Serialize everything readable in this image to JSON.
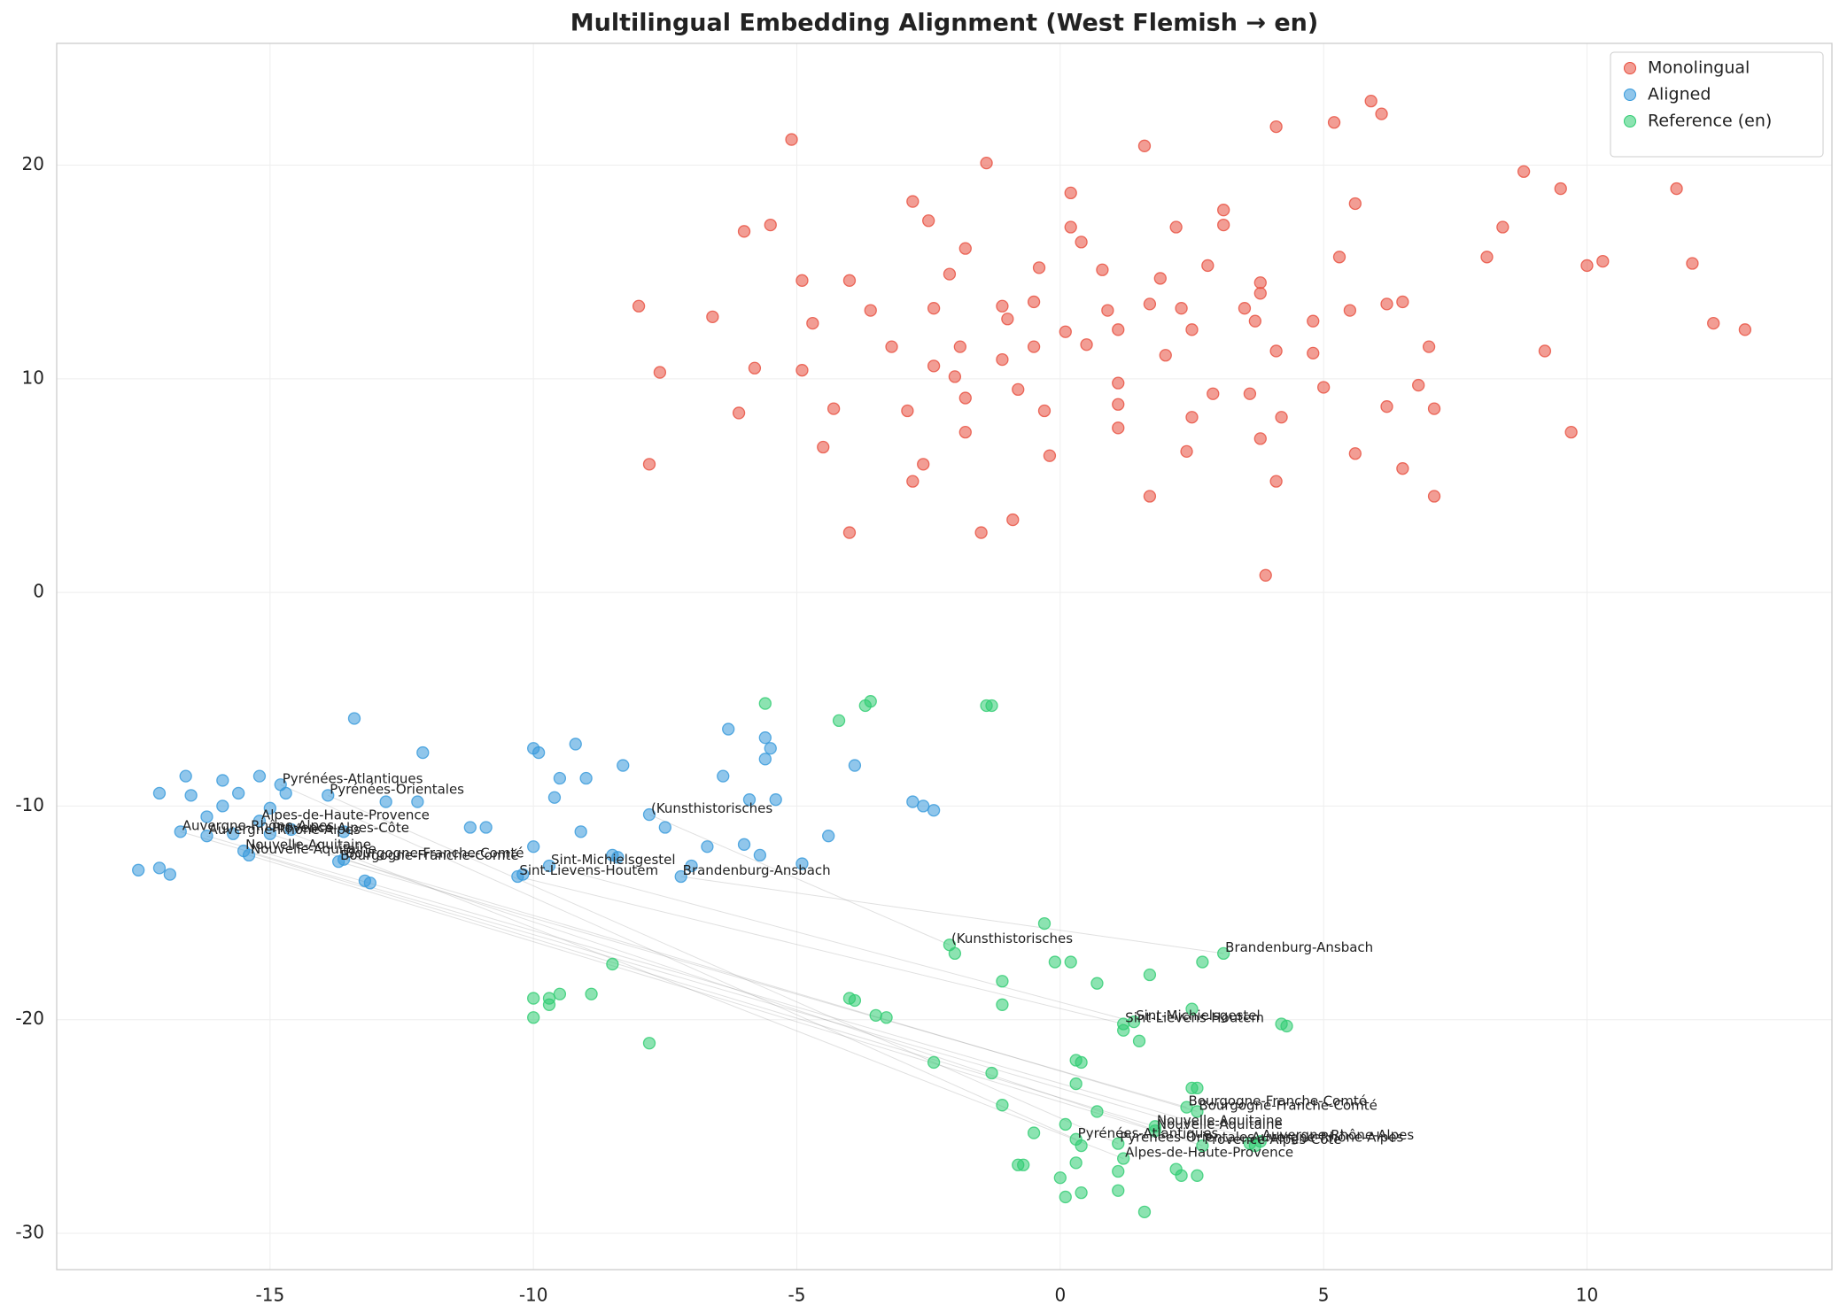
{
  "chart_data": {
    "type": "scatter",
    "title": "Multilingual Embedding Alignment (West Flemish → en)",
    "xlim": [
      -19.05,
      14.65
    ],
    "ylim": [
      -31.7,
      25.7
    ],
    "xticks": [
      -15,
      -10,
      -5,
      0,
      5,
      10
    ],
    "yticks": [
      -30,
      -20,
      -10,
      0,
      10,
      20
    ],
    "grid": true,
    "legend": "upper right",
    "series": [
      {
        "name": "Monolingual",
        "color": "#e74c3c",
        "x": [
          -5.1,
          1.6,
          4.1,
          5.9,
          6.1,
          5.2,
          -1.4,
          8.8,
          9.5,
          11.7,
          0.2,
          -2.8,
          5.6,
          3.1,
          -5.5,
          -6.0,
          -2.5,
          0.2,
          2.2,
          3.1,
          8.4,
          0.4,
          -1.8,
          5.3,
          8.1,
          10.0,
          10.3,
          12.0,
          -0.4,
          0.8,
          2.8,
          -4.9,
          -4.0,
          -2.1,
          1.9,
          3.8,
          3.8,
          -8.0,
          -6.6,
          -3.6,
          -2.4,
          -1.1,
          -0.5,
          0.9,
          1.7,
          2.3,
          3.5,
          5.5,
          6.2,
          6.5,
          -4.7,
          -1.0,
          0.1,
          1.1,
          2.5,
          3.7,
          4.8,
          12.4,
          13.0,
          -7.6,
          -5.8,
          -4.9,
          -3.2,
          -1.9,
          -1.1,
          -0.5,
          0.5,
          2.0,
          4.1,
          4.8,
          7.0,
          9.2,
          -6.1,
          -4.3,
          -2.4,
          -2.0,
          -0.8,
          1.1,
          2.9,
          3.6,
          5.0,
          6.8,
          -2.9,
          -1.8,
          -0.3,
          1.1,
          2.5,
          4.2,
          6.2,
          7.1,
          -4.5,
          -1.8,
          1.1,
          3.8,
          9.7,
          -7.8,
          -2.6,
          -0.2,
          2.4,
          5.6,
          6.5,
          -2.8,
          4.1,
          1.7,
          7.1,
          -4.0,
          -1.5,
          -0.9,
          3.9
        ],
        "values": [
          21.2,
          20.9,
          21.8,
          23.0,
          22.4,
          22.0,
          20.1,
          19.7,
          18.9,
          18.9,
          18.7,
          18.3,
          18.2,
          17.9,
          17.2,
          16.9,
          17.4,
          17.1,
          17.1,
          17.2,
          17.1,
          16.4,
          16.1,
          15.7,
          15.7,
          15.3,
          15.5,
          15.4,
          15.2,
          15.1,
          15.3,
          14.6,
          14.6,
          14.9,
          14.7,
          14.5,
          14.0,
          13.4,
          12.9,
          13.2,
          13.3,
          13.4,
          13.6,
          13.2,
          13.5,
          13.3,
          13.3,
          13.2,
          13.5,
          13.6,
          12.6,
          12.8,
          12.2,
          12.3,
          12.3,
          12.7,
          12.7,
          12.6,
          12.3,
          10.3,
          10.5,
          10.4,
          11.5,
          11.5,
          10.9,
          11.5,
          11.6,
          11.1,
          11.3,
          11.2,
          11.5,
          11.3,
          8.4,
          8.6,
          10.6,
          10.1,
          9.5,
          9.8,
          9.3,
          9.3,
          9.6,
          9.7,
          8.5,
          9.1,
          8.5,
          8.8,
          8.2,
          8.2,
          8.7,
          8.6,
          6.8,
          7.5,
          7.7,
          7.2,
          7.5,
          6.0,
          6.0,
          6.4,
          6.6,
          6.5,
          5.8,
          5.2,
          5.2,
          4.5,
          4.5,
          2.8,
          2.8,
          3.4,
          0.8
        ]
      },
      {
        "name": "Aligned",
        "color": "#3498db",
        "x": [
          -13.4,
          -12.1,
          -10.0,
          -9.9,
          -9.2,
          -8.3,
          -9.5,
          -9.0,
          -6.3,
          -5.6,
          -5.5,
          -5.6,
          -6.4,
          -5.9,
          -5.4,
          -3.9,
          -16.6,
          -15.9,
          -15.2,
          -14.8,
          -17.1,
          -16.5,
          -15.6,
          -14.7,
          -13.9,
          -12.8,
          -12.2,
          -15.9,
          -16.2,
          -15.0,
          -9.6,
          -15.2,
          -16.7,
          -16.2,
          -15.7,
          -15.0,
          -14.6,
          -13.6,
          -11.2,
          -10.9,
          -9.1,
          -7.5,
          -7.8,
          -4.4,
          -2.8,
          -2.6,
          -2.4,
          -15.5,
          -15.4,
          -13.7,
          -13.6,
          -10.0,
          -9.7,
          -8.5,
          -8.4,
          -6.7,
          -6.0,
          -5.7,
          -4.9,
          -7.0,
          -7.2,
          -10.3,
          -10.2,
          -17.5,
          -17.1,
          -16.9,
          -13.2,
          -13.1
        ],
        "values": [
          -5.9,
          -7.5,
          -7.3,
          -7.5,
          -7.1,
          -8.1,
          -8.7,
          -8.7,
          -6.4,
          -6.8,
          -7.3,
          -7.8,
          -8.6,
          -9.7,
          -9.7,
          -8.1,
          -8.6,
          -8.8,
          -8.6,
          -9.0,
          -9.4,
          -9.5,
          -9.4,
          -9.4,
          -9.5,
          -9.8,
          -9.8,
          -10.0,
          -10.5,
          -10.1,
          -9.6,
          -10.7,
          -11.2,
          -11.4,
          -11.3,
          -11.3,
          -11.1,
          -11.2,
          -11.0,
          -11.0,
          -11.2,
          -11.0,
          -10.4,
          -11.4,
          -9.8,
          -10.0,
          -10.2,
          -12.1,
          -12.3,
          -12.6,
          -12.5,
          -11.9,
          -12.8,
          -12.3,
          -12.4,
          -11.9,
          -11.8,
          -12.3,
          -12.7,
          -12.8,
          -13.3,
          -13.3,
          -13.2,
          -13.0,
          -12.9,
          -13.2,
          -13.5,
          -13.6
        ],
        "labels": [
          null,
          null,
          null,
          null,
          null,
          null,
          null,
          null,
          null,
          null,
          null,
          null,
          null,
          null,
          null,
          null,
          null,
          null,
          null,
          "Pyrénées-Atlantiques",
          null,
          null,
          null,
          null,
          "Pyrénées-Orientales",
          null,
          null,
          null,
          null,
          null,
          null,
          "Alpes-de-Haute-Provence",
          "Auvergne-Rhône-Alpes",
          "Auvergne-Rhône-Alpes",
          null,
          "Provence-Alpes-Côte",
          null,
          null,
          null,
          null,
          null,
          null,
          "(Kunsthistorisches",
          null,
          null,
          null,
          null,
          "Nouvelle-Aquitaine",
          "Nouvelle-Aquitaine",
          "Bourgogne-Franche-Comté",
          "Bourgogne-Franche-Comté",
          null,
          "Sint-Michielsgestel",
          null,
          null,
          null,
          null,
          null,
          null,
          null,
          "Brandenburg-Ansbach",
          "Sint-Lievens-Houtem",
          null,
          null,
          null,
          null,
          null,
          null
        ]
      },
      {
        "name": "Reference (en)",
        "color": "#2ecc71",
        "x": [
          -5.6,
          -3.6,
          -3.7,
          -1.3,
          -1.4,
          -4.2,
          -0.3,
          -2.1,
          -2.0,
          3.1,
          -0.1,
          0.2,
          2.7,
          -8.5,
          1.7,
          -1.1,
          0.7,
          -10.0,
          -9.7,
          -9.5,
          -9.7,
          -8.9,
          -10.0,
          -4.0,
          -3.9,
          -1.1,
          -3.5,
          -3.3,
          2.5,
          -7.8,
          1.2,
          1.4,
          1.2,
          4.2,
          4.3,
          1.5,
          -2.4,
          0.3,
          0.4,
          -1.3,
          0.3,
          2.5,
          2.6,
          2.4,
          2.6,
          -1.1,
          0.7,
          0.1,
          1.8,
          1.8,
          -0.5,
          0.3,
          0.4,
          1.1,
          2.7,
          3.6,
          3.7,
          3.8,
          1.2,
          0.3,
          -0.7,
          -0.8,
          2.2,
          1.1,
          2.3,
          2.6,
          0.0,
          1.1,
          0.4,
          0.1,
          1.6
        ],
        "values": [
          -5.2,
          -5.1,
          -5.3,
          -5.3,
          -5.3,
          -6.0,
          -15.5,
          -16.5,
          -16.9,
          -16.9,
          -17.3,
          -17.3,
          -17.3,
          -17.4,
          -17.9,
          -18.2,
          -18.3,
          -19.0,
          -19.0,
          -18.8,
          -19.3,
          -18.8,
          -19.9,
          -19.0,
          -19.1,
          -19.3,
          -19.8,
          -19.9,
          -19.5,
          -21.1,
          -20.2,
          -20.1,
          -20.5,
          -20.2,
          -20.3,
          -21.0,
          -22.0,
          -21.9,
          -22.0,
          -22.5,
          -23.0,
          -23.2,
          -23.2,
          -24.1,
          -24.3,
          -24.0,
          -24.3,
          -24.9,
          -25.0,
          -25.2,
          -25.3,
          -25.6,
          -25.9,
          -25.8,
          -25.9,
          -25.8,
          -25.9,
          -25.7,
          -26.5,
          -26.7,
          -26.8,
          -26.8,
          -27.0,
          -27.1,
          -27.3,
          -27.3,
          -27.4,
          -28.0,
          -28.1,
          -28.3,
          -29.0
        ],
        "labels": [
          null,
          null,
          null,
          null,
          null,
          null,
          null,
          "(Kunsthistorisches",
          null,
          "Brandenburg-Ansbach",
          null,
          null,
          null,
          null,
          null,
          null,
          null,
          null,
          null,
          null,
          null,
          null,
          null,
          null,
          null,
          null,
          null,
          null,
          null,
          null,
          "Sint-Lievens-Houtem",
          "Sint-Michielsgestel",
          null,
          null,
          null,
          null,
          null,
          null,
          null,
          null,
          null,
          null,
          null,
          "Bourgogne-Franche-Comté",
          "Bourgogne-Franche-Comté",
          null,
          null,
          null,
          "Nouvelle-Aquitaine",
          "Nouvelle-Aquitaine",
          null,
          "Pyrénées-Atlantiques",
          null,
          "Pyrénées-Orientales",
          "Provence-Alpes-Côte",
          "Auvergne-Rhône-Alpes",
          null,
          "Auvergne-Rhône-Alpes",
          "Alpes-de-Haute-Provence",
          null,
          null,
          null,
          null,
          null,
          null,
          null,
          null,
          null,
          null,
          null,
          null
        ]
      }
    ]
  }
}
